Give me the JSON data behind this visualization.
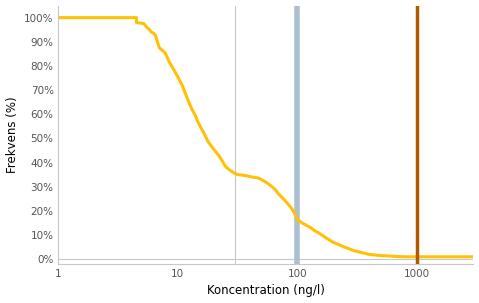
{
  "title": "",
  "xlabel": "Koncentration (ng/l)",
  "ylabel": "Frekvens (%)",
  "xlim": [
    1,
    3000
  ],
  "ylim": [
    -0.02,
    1.05
  ],
  "curve_color": "#FFC107",
  "curve_linewidth": 2.2,
  "vline_blue_x": 100,
  "vline_blue_color": "#AABFCF",
  "vline_blue_linewidth": 4.0,
  "vline_orange_x": 1000,
  "vline_orange_color": "#B05A00",
  "vline_orange_linewidth": 2.5,
  "grid_color": "#C8C8C8",
  "grid_linewidth": 0.8,
  "background_color": "#FFFFFF",
  "vline_gray_x": 30,
  "vline_gray_color": "#C8C8C8",
  "vline_gray_linewidth": 0.8,
  "curve_x": [
    1.0,
    4.5,
    4.5,
    5.2,
    5.5,
    5.8,
    6.0,
    6.3,
    6.5,
    7.0,
    7.5,
    7.8,
    8.0,
    8.5,
    9.0,
    9.5,
    10.0,
    11.0,
    12.0,
    13.0,
    14.0,
    15.0,
    16.0,
    17.0,
    18.0,
    20.0,
    22.0,
    24.0,
    25.0,
    27.0,
    28.0,
    30.0,
    32.0,
    35.0,
    38.0,
    40.0,
    42.0,
    45.0,
    48.0,
    50.0,
    55.0,
    58.0,
    60.0,
    65.0,
    68.0,
    70.0,
    75.0,
    80.0,
    85.0,
    90.0,
    95.0,
    100.0,
    105.0,
    110.0,
    120.0,
    130.0,
    140.0,
    150.0,
    175.0,
    200.0,
    250.0,
    300.0,
    400.0,
    500.0,
    600.0,
    700.0,
    800.0,
    900.0,
    1000.0,
    1200.0,
    2000.0,
    3000.0
  ],
  "curve_y": [
    1.0,
    1.0,
    0.98,
    0.975,
    0.96,
    0.95,
    0.94,
    0.935,
    0.925,
    0.875,
    0.862,
    0.855,
    0.845,
    0.815,
    0.795,
    0.775,
    0.755,
    0.715,
    0.665,
    0.625,
    0.595,
    0.56,
    0.535,
    0.51,
    0.485,
    0.455,
    0.43,
    0.4,
    0.385,
    0.37,
    0.365,
    0.355,
    0.35,
    0.348,
    0.345,
    0.342,
    0.34,
    0.338,
    0.335,
    0.33,
    0.318,
    0.31,
    0.305,
    0.29,
    0.278,
    0.27,
    0.255,
    0.24,
    0.225,
    0.21,
    0.19,
    0.165,
    0.158,
    0.15,
    0.14,
    0.13,
    0.118,
    0.11,
    0.088,
    0.07,
    0.05,
    0.035,
    0.02,
    0.015,
    0.013,
    0.011,
    0.01,
    0.01,
    0.01,
    0.01,
    0.01,
    0.01
  ]
}
